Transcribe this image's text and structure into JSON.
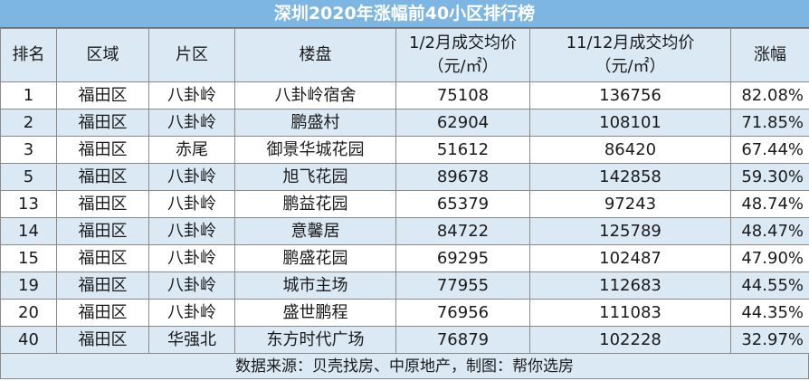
{
  "title": "深圳2020年涨幅前40小区排行榜",
  "headers": {
    "rank": "排名",
    "district": "区域",
    "area": "片区",
    "estate": "楼盘",
    "price_jan_line1": "1/2月成交均价",
    "price_jan_line2": "（元/㎡）",
    "price_nov_line1": "11/12月成交均价",
    "price_nov_line2": "（元/㎡）",
    "increase": "涨幅"
  },
  "rows": [
    {
      "rank": "1",
      "district": "福田区",
      "area": "八卦岭",
      "estate": "八卦岭宿舍",
      "price_jan": "75108",
      "price_nov": "136756",
      "increase": "82.08%"
    },
    {
      "rank": "2",
      "district": "福田区",
      "area": "八卦岭",
      "estate": "鹏盛村",
      "price_jan": "62904",
      "price_nov": "108101",
      "increase": "71.85%"
    },
    {
      "rank": "3",
      "district": "福田区",
      "area": "赤尾",
      "estate": "御景华城花园",
      "price_jan": "51612",
      "price_nov": "86420",
      "increase": "67.44%"
    },
    {
      "rank": "5",
      "district": "福田区",
      "area": "八卦岭",
      "estate": "旭飞花园",
      "price_jan": "89678",
      "price_nov": "142858",
      "increase": "59.30%"
    },
    {
      "rank": "13",
      "district": "福田区",
      "area": "八卦岭",
      "estate": "鹏益花园",
      "price_jan": "65379",
      "price_nov": "97243",
      "increase": "48.74%"
    },
    {
      "rank": "14",
      "district": "福田区",
      "area": "八卦岭",
      "estate": "意馨居",
      "price_jan": "84722",
      "price_nov": "125789",
      "increase": "48.47%"
    },
    {
      "rank": "15",
      "district": "福田区",
      "area": "八卦岭",
      "estate": "鹏盛花园",
      "price_jan": "69295",
      "price_nov": "102487",
      "increase": "47.90%"
    },
    {
      "rank": "19",
      "district": "福田区",
      "area": "八卦岭",
      "estate": "城市主场",
      "price_jan": "77955",
      "price_nov": "112683",
      "increase": "44.55%"
    },
    {
      "rank": "20",
      "district": "福田区",
      "area": "八卦岭",
      "estate": "盛世鹏程",
      "price_jan": "76956",
      "price_nov": "111083",
      "increase": "44.35%"
    },
    {
      "rank": "40",
      "district": "福田区",
      "area": "华强北",
      "estate": "东方时代广场",
      "price_jan": "76879",
      "price_nov": "102228",
      "increase": "32.97%"
    }
  ],
  "footer": "数据来源：贝壳找房、中原地产，制图：帮你选房",
  "colors": {
    "title_background": "#7db6e2",
    "header_background": "#dbe9f5",
    "band_row_background": "#dbe9f5"
  }
}
